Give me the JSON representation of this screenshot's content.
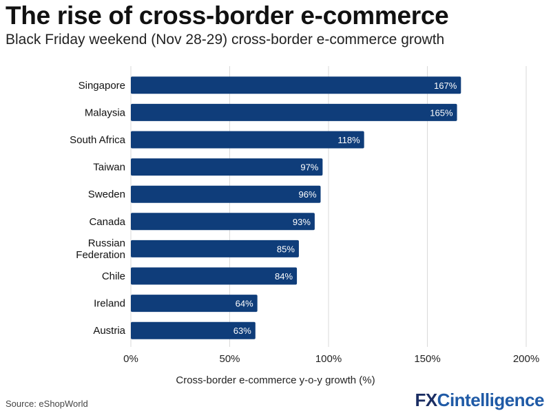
{
  "header": {
    "title": "The rise of cross-border e-commerce",
    "subtitle": "Black Friday weekend (Nov 28-29) cross-border e-commerce growth"
  },
  "footer": {
    "source": "Source: eShopWorld",
    "logo_prefix": "FX",
    "logo_suffix": "Cintelligence"
  },
  "colors": {
    "bar": "#0f3d7a",
    "bar_label": "#ffffff",
    "grid": "#d9d9d9",
    "text": "#111111",
    "logo_dark": "#1b2e63",
    "logo_blue": "#1f5aa6"
  },
  "chart_data": {
    "type": "bar",
    "orientation": "horizontal",
    "title": "The rise of cross-border e-commerce",
    "subtitle": "Black Friday weekend (Nov 28-29) cross-border e-commerce growth",
    "xlabel": "Cross-border e-commerce y-o-y growth (%)",
    "ylabel": "",
    "xlim": [
      0,
      200
    ],
    "xticks": [
      0,
      50,
      100,
      150,
      200
    ],
    "xtick_labels": [
      "0%",
      "50%",
      "100%",
      "150%",
      "200%"
    ],
    "grid": "vertical",
    "categories": [
      [
        "Singapore"
      ],
      [
        "Malaysia"
      ],
      [
        "South Africa"
      ],
      [
        "Taiwan"
      ],
      [
        "Sweden"
      ],
      [
        "Canada"
      ],
      [
        "Russian",
        "Federation"
      ],
      [
        "Chile"
      ],
      [
        "Ireland"
      ],
      [
        "Austria"
      ]
    ],
    "values": [
      167,
      165,
      118,
      97,
      96,
      93,
      85,
      84,
      64,
      63
    ],
    "value_labels": [
      "167%",
      "165%",
      "118%",
      "97%",
      "96%",
      "93%",
      "85%",
      "84%",
      "64%",
      "63%"
    ]
  }
}
